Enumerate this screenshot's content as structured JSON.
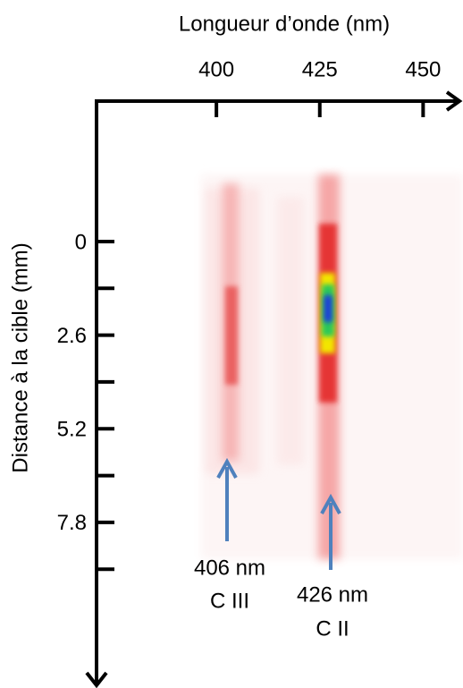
{
  "chart_data": {
    "type": "spectrum",
    "x_label": "Longueur d’onde (nm)",
    "y_label": "Distance à la cible (mm)",
    "xlim": [
      371,
      459
    ],
    "xticks": [
      400,
      425,
      450
    ],
    "ylim": [
      -3.9,
      12.3
    ],
    "yticks": [
      0,
      2.6,
      5.2,
      7.8
    ],
    "yminor_ticks": [
      1.3,
      3.9,
      6.5,
      9.1
    ],
    "annotations": [
      [
        "406 nm",
        "C III"
      ],
      [
        "426 nm",
        "C II"
      ]
    ]
  }
}
